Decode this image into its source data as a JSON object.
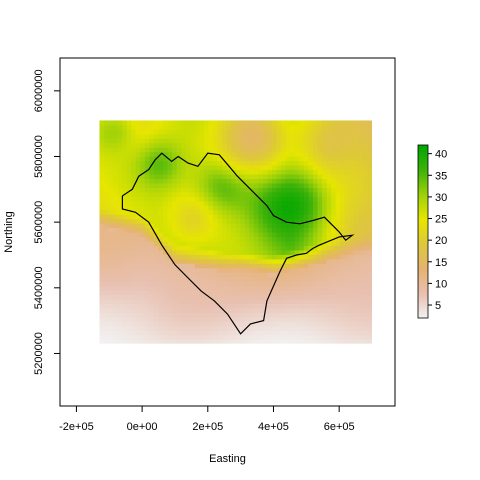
{
  "chart_data": {
    "type": "heatmap",
    "title": "",
    "xlabel": "Easting",
    "ylabel": "Northing",
    "xlim": [
      -250000,
      770000
    ],
    "ylim": [
      5040000,
      6100000
    ],
    "x_ticks": [
      -200000,
      0,
      200000,
      400000,
      600000
    ],
    "x_tick_labels": [
      "-2e+05",
      "0e+00",
      "2e+05",
      "4e+05",
      "6e+05"
    ],
    "y_ticks": [
      5200000,
      5400000,
      5600000,
      5800000,
      6000000
    ],
    "y_tick_labels": [
      "5200000",
      "5400000",
      "5600000",
      "5800000",
      "6000000"
    ],
    "grid": false,
    "legend": {
      "placement": "right",
      "range": [
        2,
        42
      ],
      "ticks": [
        5,
        10,
        15,
        20,
        25,
        30,
        35,
        40
      ],
      "tick_labels": [
        "5",
        "10",
        "15",
        "20",
        "25",
        "30",
        "35",
        "40"
      ],
      "colors": [
        "#F2F2F2",
        "#E8C0B0",
        "#E6B272",
        "#DDC83A",
        "#E6E600",
        "#9ED10A",
        "#3DB20A",
        "#00A600"
      ]
    },
    "raster_extent": {
      "x": [
        -130000,
        700000
      ],
      "y": [
        5230000,
        5910000
      ]
    },
    "value_field": {
      "base_north": [
        [
          -130000,
          24
        ],
        [
          0,
          24
        ],
        [
          150000,
          27
        ],
        [
          300000,
          29
        ],
        [
          450000,
          32
        ],
        [
          550000,
          25
        ],
        [
          700000,
          18
        ]
      ],
      "south_boundary": [
        [
          -130000,
          5580000
        ],
        [
          0,
          5560000
        ],
        [
          100000,
          5480000
        ],
        [
          250000,
          5450000
        ],
        [
          400000,
          5440000
        ],
        [
          550000,
          5480000
        ],
        [
          700000,
          5500000
        ]
      ],
      "blobs": [
        {
          "x": 460000,
          "y": 5670000,
          "value": 41,
          "radius": 110000
        },
        {
          "x": 250000,
          "y": 5720000,
          "value": 38,
          "radius": 80000
        },
        {
          "x": 60000,
          "y": 5780000,
          "value": 36,
          "radius": 80000
        },
        {
          "x": 140000,
          "y": 5600000,
          "value": 22,
          "radius": 70000
        },
        {
          "x": 320000,
          "y": 5850000,
          "value": 15,
          "radius": 120000
        },
        {
          "x": 600000,
          "y": 5860000,
          "value": 16,
          "radius": 110000
        },
        {
          "x": -80000,
          "y": 5880000,
          "value": 30,
          "radius": 60000
        }
      ]
    },
    "boundary": [
      [
        -60000,
        5680000
      ],
      [
        -30000,
        5700000
      ],
      [
        -10000,
        5740000
      ],
      [
        20000,
        5760000
      ],
      [
        40000,
        5790000
      ],
      [
        60000,
        5810000
      ],
      [
        90000,
        5785000
      ],
      [
        110000,
        5800000
      ],
      [
        140000,
        5780000
      ],
      [
        170000,
        5770000
      ],
      [
        200000,
        5810000
      ],
      [
        235000,
        5805000
      ],
      [
        265000,
        5770000
      ],
      [
        290000,
        5740000
      ],
      [
        330000,
        5700000
      ],
      [
        350000,
        5680000
      ],
      [
        380000,
        5650000
      ],
      [
        400000,
        5620000
      ],
      [
        440000,
        5600000
      ],
      [
        480000,
        5595000
      ],
      [
        520000,
        5605000
      ],
      [
        555000,
        5615000
      ],
      [
        590000,
        5580000
      ],
      [
        600000,
        5570000
      ],
      [
        620000,
        5545000
      ],
      [
        640000,
        5560000
      ],
      [
        600000,
        5555000
      ],
      [
        540000,
        5530000
      ],
      [
        520000,
        5520000
      ],
      [
        500000,
        5505000
      ],
      [
        470000,
        5500000
      ],
      [
        440000,
        5490000
      ],
      [
        420000,
        5450000
      ],
      [
        380000,
        5360000
      ],
      [
        370000,
        5300000
      ],
      [
        330000,
        5290000
      ],
      [
        300000,
        5260000
      ],
      [
        260000,
        5320000
      ],
      [
        220000,
        5360000
      ],
      [
        180000,
        5390000
      ],
      [
        140000,
        5430000
      ],
      [
        100000,
        5470000
      ],
      [
        60000,
        5530000
      ],
      [
        20000,
        5600000
      ],
      [
        -20000,
        5630000
      ],
      [
        -60000,
        5640000
      ],
      [
        -60000,
        5680000
      ]
    ]
  }
}
